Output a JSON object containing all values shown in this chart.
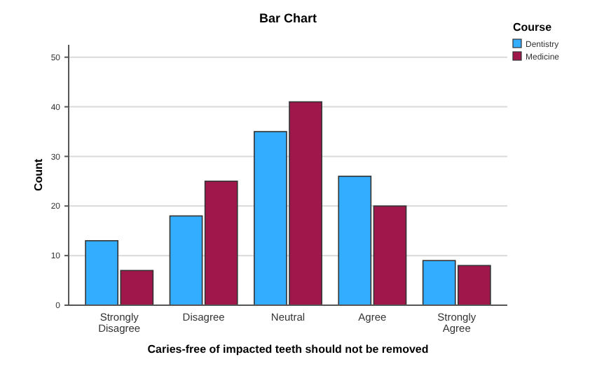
{
  "chart_data": {
    "type": "bar",
    "title": "Bar Chart",
    "xlabel": "Caries-free of impacted teeth should not be removed",
    "ylabel": "Count",
    "legend_title": "Course",
    "categories": [
      "Strongly Disagree",
      "Disagree",
      "Neutral",
      "Agree",
      "Strongly Agree"
    ],
    "series": [
      {
        "name": "Dentistry",
        "color": "#33adff",
        "values": [
          13,
          18,
          35,
          26,
          9
        ]
      },
      {
        "name": "Medicine",
        "color": "#a0174c",
        "values": [
          7,
          25,
          41,
          20,
          8
        ]
      }
    ],
    "ylim": [
      0,
      52.5
    ],
    "yticks": [
      0,
      10,
      20,
      30,
      40,
      50
    ],
    "grid": "y",
    "legend": "top right"
  }
}
